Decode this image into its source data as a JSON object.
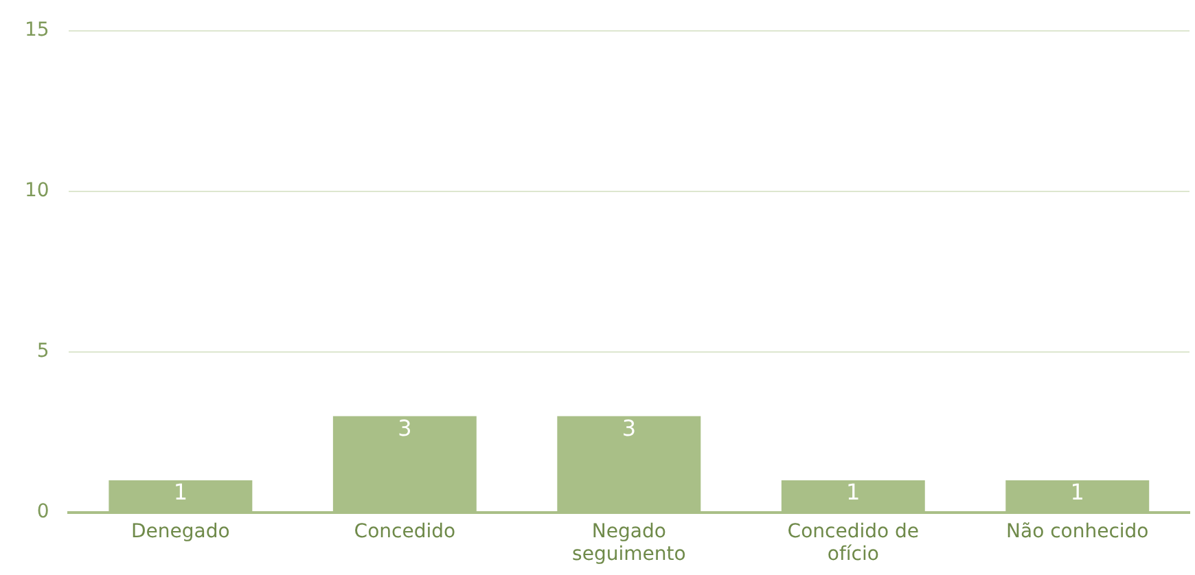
{
  "chart_data": {
    "type": "bar",
    "categories": [
      "Denegado",
      "Concedido",
      "Negado seguimento",
      "Concedido de ofício",
      "Não conhecido"
    ],
    "values": [
      1,
      3,
      3,
      1,
      1
    ],
    "color": "#a9bf87",
    "ylim": [
      0,
      15
    ],
    "yticks": [
      0,
      5,
      10,
      15
    ],
    "grid": "y",
    "data_labels": true
  }
}
